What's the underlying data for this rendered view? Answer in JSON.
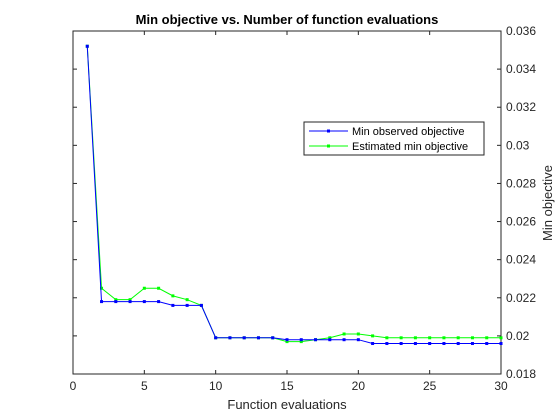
{
  "chart_data": {
    "type": "line",
    "title": "Min objective vs. Number of function evaluations",
    "xlabel": "Function evaluations",
    "ylabel": "Min objective",
    "xlim": [
      0,
      30
    ],
    "ylim": [
      0.018,
      0.036
    ],
    "xticks": [
      0,
      5,
      10,
      15,
      20,
      25,
      30
    ],
    "yticks": [
      0.018,
      0.02,
      0.022,
      0.024,
      0.026,
      0.028,
      0.03,
      0.032,
      0.034,
      0.036
    ],
    "ytick_labels": [
      "0.018",
      "0.02",
      "0.022",
      "0.024",
      "0.026",
      "0.028",
      "0.03",
      "0.032",
      "0.034",
      "0.036"
    ],
    "y_axis_side": "right",
    "grid": false,
    "legend_position": "top-right",
    "x": [
      1,
      2,
      3,
      4,
      5,
      6,
      7,
      8,
      9,
      10,
      11,
      12,
      13,
      14,
      15,
      16,
      17,
      18,
      19,
      20,
      21,
      22,
      23,
      24,
      25,
      26,
      27,
      28,
      29,
      30
    ],
    "series": [
      {
        "name": "Min observed objective",
        "color": "#0000ff",
        "marker": "square",
        "values": [
          0.0352,
          0.0218,
          0.0218,
          0.0218,
          0.0218,
          0.0218,
          0.0216,
          0.0216,
          0.0216,
          0.0199,
          0.0199,
          0.0199,
          0.0199,
          0.0199,
          0.0198,
          0.0198,
          0.0198,
          0.0198,
          0.0198,
          0.0198,
          0.0196,
          0.0196,
          0.0196,
          0.0196,
          0.0196,
          0.0196,
          0.0196,
          0.0196,
          0.0196,
          0.0196
        ]
      },
      {
        "name": "Estimated min objective",
        "color": "#00ff00",
        "marker": "square",
        "values": [
          0.0352,
          0.0225,
          0.0219,
          0.0219,
          0.0225,
          0.0225,
          0.0221,
          0.0219,
          0.0216,
          0.0199,
          0.0199,
          0.0199,
          0.0199,
          0.0199,
          0.0197,
          0.0197,
          0.0198,
          0.0199,
          0.0201,
          0.0201,
          0.02,
          0.0199,
          0.0199,
          0.0199,
          0.0199,
          0.0199,
          0.0199,
          0.0199,
          0.0199,
          0.0199
        ]
      }
    ]
  }
}
